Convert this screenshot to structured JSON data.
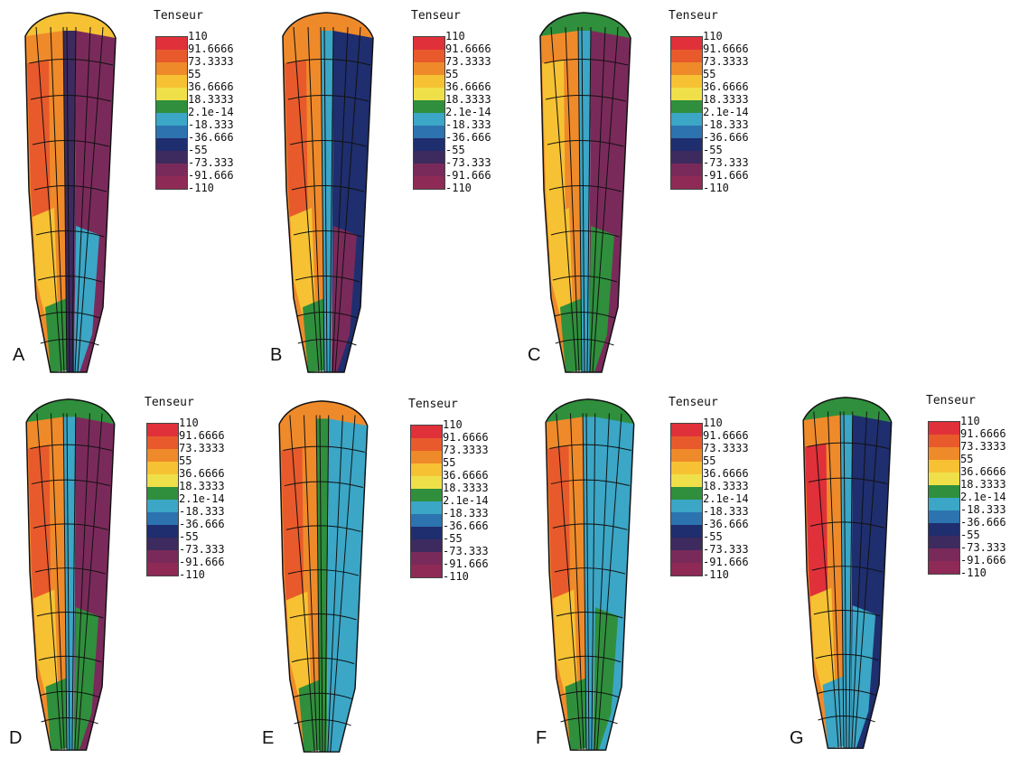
{
  "legend_title": "Tenseur",
  "legend_ticks": [
    "110",
    "91.6666",
    "73.3333",
    "55",
    "36.6666",
    "18.3333",
    "2.1e-14",
    "-18.333",
    "-36.666",
    "-55",
    "-73.333",
    "-91.666",
    "-110"
  ],
  "legend_colors": [
    "#e0303a",
    "#e85a2c",
    "#ef8a2a",
    "#f6c233",
    "#efe04a",
    "#2f8f3c",
    "#3ba6c6",
    "#2c73b0",
    "#1f2e6e",
    "#3d2a5e",
    "#7a2a5a",
    "#8e2a55"
  ],
  "panels": [
    {
      "label": "A",
      "colors": {
        "outer": "#ef8a2a",
        "left": "#e85a2c",
        "lower": "#f6c233",
        "tip": "#2f8f3c",
        "core": "#3d2a5e",
        "right": "#7a2a5a",
        "rim": "#3ba6c6",
        "top": "#f6c233"
      }
    },
    {
      "label": "B",
      "colors": {
        "outer": "#ef8a2a",
        "left": "#e85a2c",
        "lower": "#f6c233",
        "tip": "#2f8f3c",
        "core": "#3ba6c6",
        "right": "#1f2e6e",
        "rim": "#7a2a5a",
        "top": "#ef8a2a"
      }
    },
    {
      "label": "C",
      "colors": {
        "outer": "#ef8a2a",
        "left": "#f6c233",
        "lower": "#f6c233",
        "tip": "#2f8f3c",
        "core": "#3ba6c6",
        "right": "#7a2a5a",
        "rim": "#2f8f3c",
        "top": "#2f8f3c"
      }
    },
    {
      "label": "D",
      "colors": {
        "outer": "#ef8a2a",
        "left": "#e85a2c",
        "lower": "#f6c233",
        "tip": "#2f8f3c",
        "core": "#3ba6c6",
        "right": "#7a2a5a",
        "rim": "#2f8f3c",
        "top": "#2f8f3c"
      }
    },
    {
      "label": "E",
      "colors": {
        "outer": "#ef8a2a",
        "left": "#e85a2c",
        "lower": "#f6c233",
        "tip": "#2f8f3c",
        "core": "#2f8f3c",
        "right": "#3ba6c6",
        "rim": "#3ba6c6",
        "top": "#ef8a2a"
      }
    },
    {
      "label": "F",
      "colors": {
        "outer": "#ef8a2a",
        "left": "#e85a2c",
        "lower": "#f6c233",
        "tip": "#2f8f3c",
        "core": "#3ba6c6",
        "right": "#3ba6c6",
        "rim": "#2f8f3c",
        "top": "#2f8f3c"
      }
    },
    {
      "label": "G",
      "colors": {
        "outer": "#ef8a2a",
        "left": "#e0303a",
        "lower": "#f6c233",
        "tip": "#3ba6c6",
        "core": "#3ba6c6",
        "right": "#1f2e6e",
        "rim": "#3ba6c6",
        "top": "#2f8f3c"
      }
    }
  ]
}
